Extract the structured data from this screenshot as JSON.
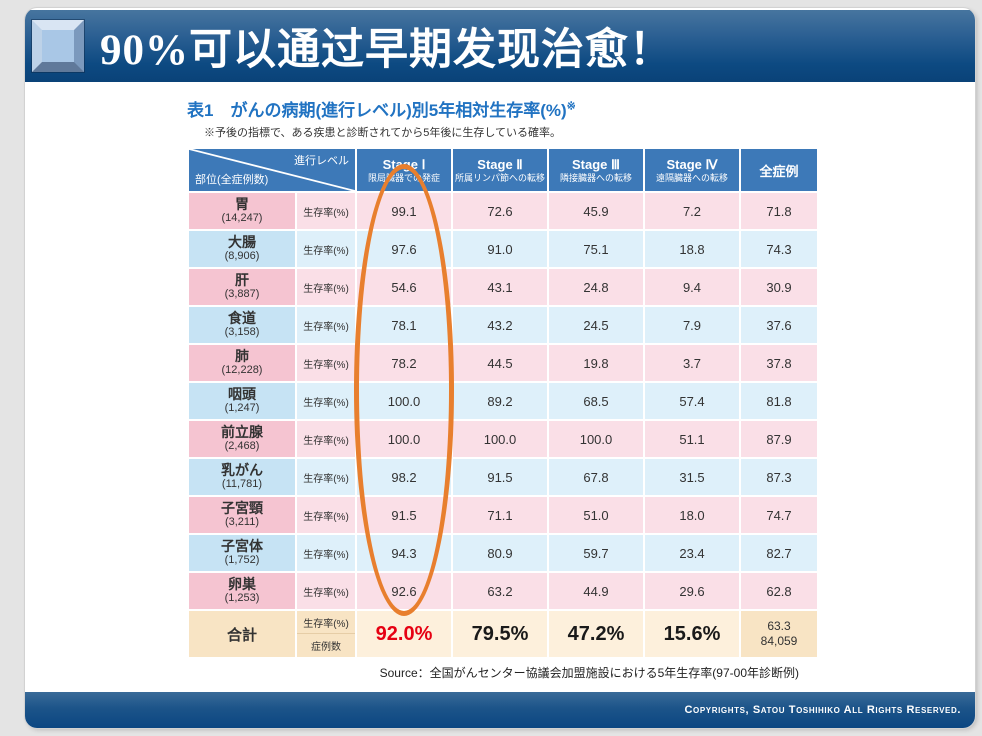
{
  "header": {
    "title": "90%可以通过早期发现治愈！"
  },
  "table": {
    "title": "表1　がんの病期(進行レベル)別5年相対生存率(%)",
    "title_note_mark": "※",
    "subtitle": "※予後の指標で、ある疾患と診断されてから5年後に生存している確率。",
    "corner": {
      "top_right": "進行レベル",
      "bottom_left": "部位(全症例数)"
    },
    "columns": [
      {
        "label": "Stage Ⅰ",
        "sub": "限局臓器での発症"
      },
      {
        "label": "Stage Ⅱ",
        "sub": "所属リンパ節への転移"
      },
      {
        "label": "Stage Ⅲ",
        "sub": "隣接臓器への転移"
      },
      {
        "label": "Stage Ⅳ",
        "sub": "遠隔臓器への転移"
      }
    ],
    "all_cases_header": "全症例",
    "row_label": "生存率(%)",
    "rows": [
      {
        "part": "胃",
        "count": "(14,247)",
        "values": [
          "99.1",
          "72.6",
          "45.9",
          "7.2",
          "71.8"
        ],
        "tint": "pink"
      },
      {
        "part": "大腸",
        "count": "(8,906)",
        "values": [
          "97.6",
          "91.0",
          "75.1",
          "18.8",
          "74.3"
        ],
        "tint": "blue"
      },
      {
        "part": "肝",
        "count": "(3,887)",
        "values": [
          "54.6",
          "43.1",
          "24.8",
          "9.4",
          "30.9"
        ],
        "tint": "pink"
      },
      {
        "part": "食道",
        "count": "(3,158)",
        "values": [
          "78.1",
          "43.2",
          "24.5",
          "7.9",
          "37.6"
        ],
        "tint": "blue"
      },
      {
        "part": "肺",
        "count": "(12,228)",
        "values": [
          "78.2",
          "44.5",
          "19.8",
          "3.7",
          "37.8"
        ],
        "tint": "pink"
      },
      {
        "part": "咽頭",
        "count": "(1,247)",
        "values": [
          "100.0",
          "89.2",
          "68.5",
          "57.4",
          "81.8"
        ],
        "tint": "blue"
      },
      {
        "part": "前立腺",
        "count": "(2,468)",
        "values": [
          "100.0",
          "100.0",
          "100.0",
          "51.1",
          "87.9"
        ],
        "tint": "pink"
      },
      {
        "part": "乳がん",
        "count": "(11,781)",
        "values": [
          "98.2",
          "91.5",
          "67.8",
          "31.5",
          "87.3"
        ],
        "tint": "blue"
      },
      {
        "part": "子宮頸",
        "count": "(3,211)",
        "values": [
          "91.5",
          "71.1",
          "51.0",
          "18.0",
          "74.7"
        ],
        "tint": "pink"
      },
      {
        "part": "子宮体",
        "count": "(1,752)",
        "values": [
          "94.3",
          "80.9",
          "59.7",
          "23.4",
          "82.7"
        ],
        "tint": "blue"
      },
      {
        "part": "卵巣",
        "count": "(1,253)",
        "values": [
          "92.6",
          "63.2",
          "44.9",
          "29.6",
          "62.8"
        ],
        "tint": "pink"
      }
    ],
    "totals": {
      "label": "合計",
      "sublabel_top": "生存率(%)",
      "sublabel_bottom": "症例数",
      "stage_values": [
        "92.0%",
        "79.5%",
        "47.2%",
        "15.6%"
      ],
      "all_cases_rate": "63.3",
      "all_cases_count": "84,059"
    },
    "source": "Source：全国がんセンター協議会加盟施設における5年生存率(97-00年診断例)"
  },
  "annotation": {
    "shape": "ellipse",
    "target": "Stage Ⅰ column",
    "color": "#e87f2e"
  },
  "footer": {
    "copyright": "Copyrights, Satou Toshihiko All Rights Reserved."
  },
  "colors": {
    "band_navy_top": "#47759f",
    "band_navy_bottom": "#0a4278",
    "table_header_blue": "#3d79b8",
    "title_blue": "#2173c2",
    "pink_name": "#f5c4d1",
    "pink_cell": "#fadfe7",
    "blue_name": "#c6e3f4",
    "blue_cell": "#def0fa",
    "beige_name": "#f8e4c4",
    "beige_cell": "#fdf0dc",
    "highlight_red": "#e60012",
    "ellipse_orange": "#e87f2e"
  }
}
